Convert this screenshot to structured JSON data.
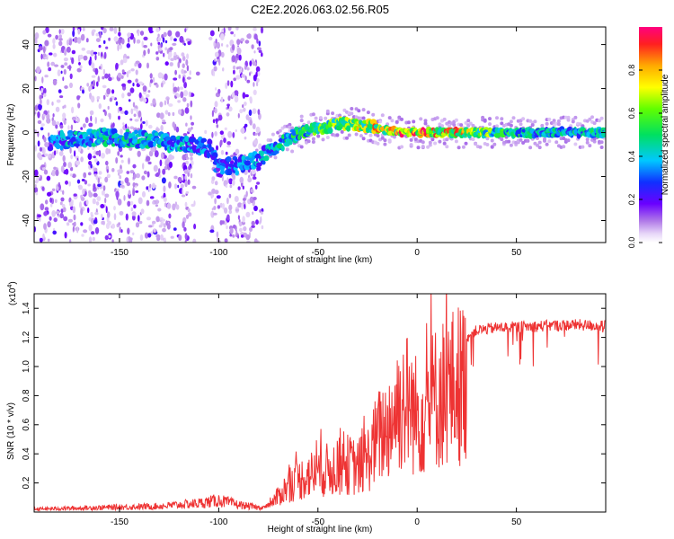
{
  "title": "C2E2.2026.063.02.56.R05",
  "chart_data": [
    {
      "type": "heatmap",
      "xlabel": "Height of straight line (km)",
      "ylabel": "Frequency (Hz)",
      "xlim": [
        -193,
        95
      ],
      "ylim": [
        -50,
        48
      ],
      "x_ticks": [
        -150,
        -100,
        -50,
        0,
        50
      ],
      "x_tick_labels": [
        "-150",
        "-100",
        "-50",
        "0",
        "50"
      ],
      "y_ticks": [
        40,
        20,
        0,
        -20,
        -40
      ],
      "y_tick_labels": [
        "40",
        "20",
        "0",
        "-20",
        "-40"
      ],
      "colorbar": {
        "label": "Normalized spectral amplitude",
        "range": [
          0,
          1
        ],
        "ticks": [
          0.0,
          0.2,
          0.4,
          0.6,
          0.8
        ],
        "tick_labels": [
          "0.0",
          "0.2",
          "0.4",
          "0.6",
          "0.8"
        ],
        "colormap": "rainbow-white-to-red"
      },
      "ridge": {
        "x": [
          -185,
          -175,
          -160,
          -140,
          -120,
          -105,
          -100,
          -90,
          -80,
          -70,
          -60,
          -50,
          -40,
          -30,
          -20,
          -10,
          0,
          10,
          20,
          30,
          50,
          70,
          95
        ],
        "freq": [
          -4,
          -3,
          -2,
          -3,
          -5,
          -7,
          -16,
          -15,
          -12,
          -6,
          0,
          2,
          4,
          4,
          2,
          0,
          0,
          0,
          0,
          0,
          0,
          0,
          0
        ],
        "amplitude": [
          0.35,
          0.45,
          0.5,
          0.5,
          0.45,
          0.4,
          0.35,
          0.4,
          0.45,
          0.5,
          0.55,
          0.65,
          0.75,
          0.85,
          0.9,
          0.95,
          0.98,
          0.95,
          0.9,
          0.75,
          0.55,
          0.5,
          0.5
        ]
      },
      "scatter_noise_region": [
        -193,
        -78
      ]
    },
    {
      "type": "line",
      "xlabel": "Height of straight line (km)",
      "ylabel": "SNR (10 * v/v)",
      "y_multiplier": "(x10",
      "y_multiplier_exp": "4",
      "y_multiplier_close": ")",
      "xlim": [
        -193,
        95
      ],
      "ylim": [
        0,
        1.5
      ],
      "x_ticks": [
        -150,
        -100,
        -50,
        0,
        50
      ],
      "x_tick_labels": [
        "-150",
        "-100",
        "-50",
        "0",
        "50"
      ],
      "y_ticks": [
        0.2,
        0.4,
        0.6,
        0.8,
        1.0,
        1.2,
        1.4
      ],
      "y_tick_labels": [
        "0.2",
        "0.4",
        "0.6",
        "0.8",
        "1.0",
        "1.2",
        "1.4"
      ],
      "line_color": "#ee3333",
      "envelope": {
        "x": [
          -193,
          -160,
          -130,
          -110,
          -100,
          -90,
          -80,
          -75,
          -65,
          -55,
          -45,
          -35,
          -30,
          -25,
          -20,
          -15,
          -10,
          -5,
          0,
          5,
          10,
          15,
          20,
          25,
          30,
          40,
          60,
          80,
          95
        ],
        "y": [
          0.02,
          0.03,
          0.04,
          0.06,
          0.08,
          0.05,
          0.03,
          0.05,
          0.25,
          0.35,
          0.4,
          0.45,
          0.42,
          0.5,
          0.7,
          0.8,
          1.0,
          1.05,
          0.9,
          1.0,
          1.1,
          1.15,
          1.2,
          1.25,
          1.3,
          1.32,
          1.33,
          1.34,
          1.33
        ]
      }
    }
  ]
}
